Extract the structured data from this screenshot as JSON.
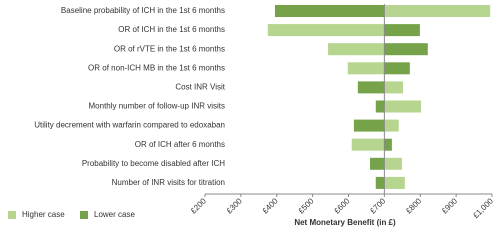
{
  "chart_data": {
    "type": "tornado",
    "categories": [
      "Baseline probability of ICH in the 1st 6 months",
      "OR of ICH in the 1st 6 months",
      "OR of rVTE in the 1st 6 months",
      "OR of non-ICH MB in the 1st 6 months",
      "Cost INR Visit",
      "Monthly number of follow-up INR visits",
      "Utility decrement with warfarin compared to edoxaban",
      "OR of ICH after 6 months",
      "Probability to become disabled after ICH",
      "Number of INR visits for titration"
    ],
    "base_value": 700,
    "series": [
      {
        "name": "Higher case",
        "color": "#b6d58f",
        "values": [
          995,
          375,
          543,
          598,
          752,
          802,
          740,
          609,
          749,
          757
        ]
      },
      {
        "name": "Lower case",
        "color": "#76a34a",
        "values": [
          395,
          799,
          821,
          771,
          626,
          676,
          615,
          721,
          660,
          676
        ]
      }
    ],
    "xlim": [
      200,
      1000
    ],
    "xticks": [
      {
        "value": 200,
        "label": "£200"
      },
      {
        "value": 300,
        "label": "£300"
      },
      {
        "value": 400,
        "label": "£400"
      },
      {
        "value": 500,
        "label": "£500"
      },
      {
        "value": 600,
        "label": "£600"
      },
      {
        "value": 700,
        "label": "£700"
      },
      {
        "value": 800,
        "label": "£800"
      },
      {
        "value": 900,
        "label": "£900"
      },
      {
        "value": 1000,
        "label": "£1,000"
      }
    ],
    "xlabel": "Net Monetary Benefit (in £)",
    "legend": "bottom-left"
  }
}
